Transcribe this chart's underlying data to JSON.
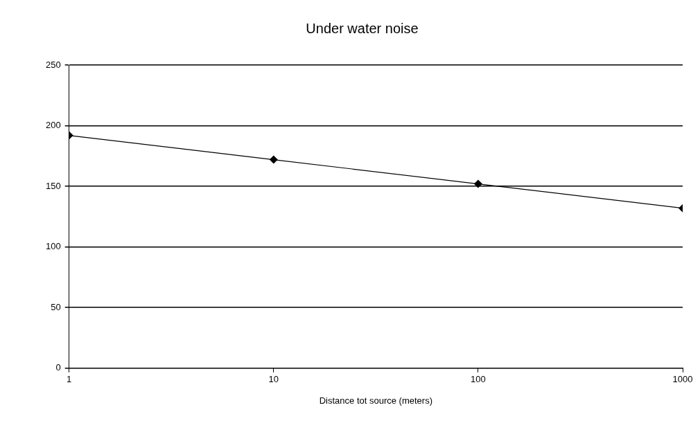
{
  "chart_data": {
    "type": "line",
    "title": "Under water noise",
    "xlabel": "Distance tot source (meters)",
    "x": [
      1,
      10,
      100,
      1000
    ],
    "values": [
      192,
      172,
      152,
      132
    ],
    "color": "#000000",
    "marker": "diamond",
    "line_style": "solid",
    "log": "x",
    "grid": "y",
    "xlim": [
      1,
      1000
    ],
    "xticks": [
      1,
      10,
      100,
      1000
    ],
    "ylim": [
      0,
      250
    ],
    "yticks": [
      0,
      50,
      100,
      150,
      200,
      250
    ]
  }
}
